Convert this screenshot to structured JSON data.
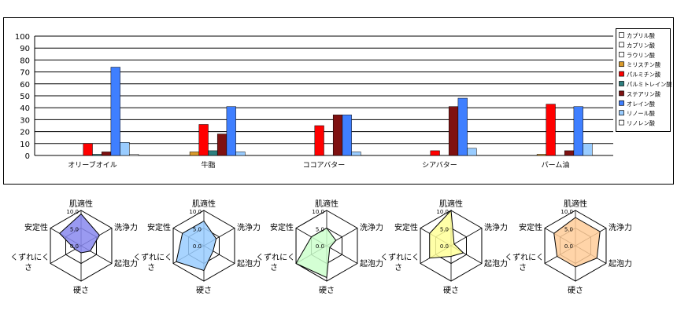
{
  "chart_data": [
    {
      "type": "bar",
      "categories": [
        "オリーブオイル",
        "牛脂",
        "ココアバター",
        "シアバター",
        "パーム油"
      ],
      "ylim": [
        0,
        100
      ],
      "yticks": [
        0,
        10,
        20,
        30,
        40,
        50,
        60,
        70,
        80,
        90,
        100
      ],
      "grid": true,
      "legend": "right",
      "series": [
        {
          "name": "カプリル酸",
          "color": "#ffffff",
          "values": [
            0,
            0,
            0,
            0,
            0
          ]
        },
        {
          "name": "カプリン酸",
          "color": "#ffffff",
          "values": [
            0,
            0,
            0,
            0,
            0
          ]
        },
        {
          "name": "ラウリン酸",
          "color": "#ffffff",
          "values": [
            0,
            0,
            0,
            0,
            0
          ]
        },
        {
          "name": "ミリスチン酸",
          "color": "#d99a2b",
          "values": [
            0,
            3,
            0,
            0,
            1
          ]
        },
        {
          "name": "パルミチン酸",
          "color": "#ff0000",
          "values": [
            10,
            26,
            25,
            4,
            43
          ]
        },
        {
          "name": "パルミトレイン酸",
          "color": "#2e7f7f",
          "values": [
            1,
            4,
            0,
            0,
            0
          ]
        },
        {
          "name": "ステアリン酸",
          "color": "#7f1111",
          "values": [
            3,
            18,
            34,
            41,
            4
          ]
        },
        {
          "name": "オレイン酸",
          "color": "#3f7fff",
          "values": [
            74,
            41,
            34,
            48,
            41
          ]
        },
        {
          "name": "リノール酸",
          "color": "#99ccff",
          "values": [
            11,
            3,
            3,
            6,
            10
          ]
        },
        {
          "name": "リノレン酸",
          "color": "#ffffff",
          "values": [
            1,
            0,
            0,
            0,
            0
          ]
        }
      ]
    },
    {
      "type": "radar",
      "axes": [
        "肌適性",
        "洗浄力",
        "起泡力",
        "硬さ",
        "くずれにくさ",
        "安定性"
      ],
      "axis_range": [
        0,
        10
      ],
      "tick_labels": [
        "0.0",
        "5.0",
        "10.0"
      ],
      "fill": "#8888ee",
      "values": [
        9,
        6,
        3,
        2,
        2,
        7
      ]
    },
    {
      "type": "radar",
      "axes": [
        "肌適性",
        "洗浄力",
        "起泡力",
        "硬さ",
        "くずれにくさ",
        "安定性"
      ],
      "axis_range": [
        0,
        10
      ],
      "tick_labels": [
        "0.0",
        "5.0",
        "10.0"
      ],
      "fill": "#99ccff",
      "values": [
        7,
        4,
        3,
        7,
        9,
        7
      ]
    },
    {
      "type": "radar",
      "axes": [
        "肌適性",
        "洗浄力",
        "起泡力",
        "硬さ",
        "くずれにくさ",
        "安定性"
      ],
      "axis_range": [
        0,
        10
      ],
      "tick_labels": [
        "0.0",
        "5.0",
        "10.0"
      ],
      "fill": "#ccffcc",
      "values": [
        5,
        3,
        1,
        9,
        10,
        5
      ]
    },
    {
      "type": "radar",
      "axes": [
        "肌適性",
        "洗浄力",
        "起泡力",
        "硬さ",
        "くずれにくさ",
        "安定性"
      ],
      "axis_range": [
        0,
        10
      ],
      "tick_labels": [
        "0.0",
        "5.0",
        "10.0"
      ],
      "fill": "#ffff99",
      "values": [
        10,
        1,
        4,
        3,
        7,
        7
      ]
    },
    {
      "type": "radar",
      "axes": [
        "肌適性",
        "洗浄力",
        "起泡力",
        "硬さ",
        "くずれにくさ",
        "安定性"
      ],
      "axis_range": [
        0,
        10
      ],
      "tick_labels": [
        "0.0",
        "5.0",
        "10.0"
      ],
      "fill": "#ffcc99",
      "values": [
        8,
        8,
        7,
        6,
        6,
        7
      ]
    }
  ]
}
